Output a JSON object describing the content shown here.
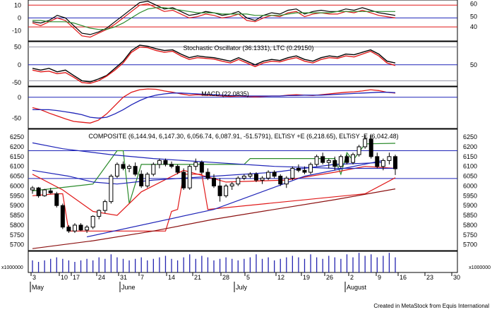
{
  "footer": "Created in MetaStock from Equis International",
  "colors": {
    "bg": "#ffffff",
    "frame": "#000000",
    "blue": "#1f24b8",
    "red": "#e01818",
    "green": "#2a8a2a",
    "darkred": "#8b1010",
    "black": "#000000",
    "volume": "#2424b0"
  },
  "x_axis": {
    "day_labels": [
      "3",
      "10",
      "17",
      "24",
      "31",
      "7",
      "14",
      "21",
      "28",
      "5",
      "12",
      "19",
      "26",
      "2",
      "9",
      "16",
      "23",
      "30"
    ],
    "month_labels": [
      "May",
      "June",
      "July",
      "August"
    ]
  },
  "chart_data": [
    {
      "type": "line",
      "id": "oscillator-top",
      "yticks_left": [
        "10",
        "0",
        "-10"
      ],
      "yticks_right": [
        "60",
        "50",
        "40"
      ],
      "series": [
        {
          "color": "#000000",
          "values": [
            -3,
            -4,
            -2,
            2,
            0,
            -6,
            -12,
            -13,
            -11,
            -8,
            -3,
            2,
            7,
            12,
            13,
            10,
            7,
            8,
            5,
            2,
            3,
            5,
            4,
            2,
            3,
            5,
            0,
            -2,
            2,
            4,
            3,
            6,
            7,
            3,
            5,
            6,
            5,
            5,
            7,
            6,
            8,
            6,
            4,
            3,
            2
          ]
        },
        {
          "color": "#e01818",
          "values": [
            -4,
            -6,
            -3,
            0,
            -2,
            -8,
            -14,
            -15,
            -12,
            -9,
            -5,
            0,
            5,
            10,
            11,
            8,
            5,
            6,
            3,
            0,
            1,
            3,
            2,
            0,
            1,
            3,
            -2,
            -3,
            0,
            2,
            1,
            4,
            5,
            1,
            3,
            4,
            3,
            3,
            5,
            4,
            6,
            4,
            2,
            1,
            0
          ]
        },
        {
          "color": "#2a8a2a",
          "values": [
            -2,
            -2,
            -3,
            -3,
            -3,
            -4,
            -6,
            -8,
            -9,
            -9,
            -7,
            -4,
            0,
            4,
            7,
            8,
            8,
            7,
            6,
            5,
            4,
            4,
            4,
            3,
            3,
            3,
            3,
            2,
            2,
            2,
            2,
            3,
            4,
            4,
            4,
            4,
            4,
            5,
            5,
            5,
            5,
            5,
            5,
            5,
            5
          ]
        }
      ]
    },
    {
      "type": "line",
      "id": "stochastic",
      "title": "Stochastic Oscillator (36.1331), LTC (0.29150)",
      "yticks_left": [
        "50",
        "0",
        "-50"
      ],
      "yticks_right": [
        "50"
      ],
      "series": [
        {
          "color": "#000000",
          "values": [
            -10,
            -15,
            -10,
            -20,
            -15,
            -30,
            -45,
            -48,
            -40,
            -30,
            -10,
            10,
            40,
            55,
            52,
            45,
            40,
            42,
            30,
            20,
            25,
            22,
            20,
            15,
            10,
            20,
            10,
            0,
            10,
            15,
            12,
            20,
            25,
            15,
            10,
            20,
            25,
            22,
            30,
            28,
            35,
            42,
            30,
            10,
            5
          ]
        },
        {
          "color": "#e01818",
          "values": [
            -15,
            -20,
            -18,
            -25,
            -22,
            -35,
            -50,
            -52,
            -45,
            -32,
            -15,
            5,
            35,
            50,
            48,
            40,
            35,
            38,
            25,
            15,
            20,
            18,
            16,
            10,
            5,
            15,
            5,
            -5,
            5,
            10,
            8,
            15,
            20,
            10,
            5,
            15,
            20,
            18,
            25,
            22,
            30,
            38,
            25,
            5,
            -2
          ]
        }
      ]
    },
    {
      "type": "line",
      "id": "macd",
      "title": "MACD (22.0835)",
      "yticks_left": [
        "0",
        "-50"
      ],
      "series": [
        {
          "color": "#e01818",
          "values": [
            -25,
            -30,
            -38,
            -45,
            -52,
            -58,
            -60,
            -62,
            -55,
            -40,
            -20,
            0,
            12,
            18,
            20,
            19,
            15,
            12,
            8,
            5,
            6,
            5,
            4,
            3,
            2,
            3,
            2,
            1,
            2,
            3,
            3,
            5,
            6,
            5,
            4,
            6,
            8,
            10,
            12,
            13,
            15,
            18,
            16,
            12,
            10
          ]
        },
        {
          "color": "#1f24b8",
          "values": [
            -30,
            -30,
            -30,
            -32,
            -35,
            -38,
            -42,
            -48,
            -50,
            -48,
            -40,
            -30,
            -18,
            -8,
            0,
            5,
            8,
            10,
            10,
            9,
            8,
            7,
            6,
            5,
            4,
            4,
            3,
            3,
            3,
            3,
            3,
            4,
            4,
            5,
            5,
            5,
            6,
            7,
            8,
            9,
            10,
            11,
            12,
            12,
            11
          ]
        }
      ]
    },
    {
      "type": "candlestick",
      "id": "composite",
      "title": "COMPOSITE (6,144.94, 6,147.30, 6,056.74, 6,087.91, -51.5791), ELTiSY +E (6,218.65), ELTiSY -E (6,042.48)",
      "yticks": [
        "6250",
        "6200",
        "6150",
        "6100",
        "6050",
        "6000",
        "5950",
        "5900",
        "5850",
        "5800",
        "5750",
        "5700"
      ],
      "ylim": [
        5670,
        6290
      ],
      "hlines": [
        6180,
        6038
      ],
      "candles": [
        [
          5980,
          6000,
          5960,
          5990
        ],
        [
          5990,
          5995,
          5940,
          5950
        ],
        [
          5950,
          5985,
          5945,
          5980
        ],
        [
          5975,
          5990,
          5960,
          5965
        ],
        [
          5960,
          5970,
          5890,
          5900
        ],
        [
          5900,
          5910,
          5780,
          5790
        ],
        [
          5790,
          5800,
          5760,
          5770
        ],
        [
          5770,
          5810,
          5760,
          5800
        ],
        [
          5800,
          5810,
          5770,
          5775
        ],
        [
          5775,
          5800,
          5760,
          5790
        ],
        [
          5790,
          5850,
          5780,
          5845
        ],
        [
          5845,
          5880,
          5830,
          5875
        ],
        [
          5875,
          5930,
          5860,
          5920
        ],
        [
          5920,
          6060,
          5910,
          6050
        ],
        [
          6050,
          6120,
          6040,
          6110
        ],
        [
          6110,
          6125,
          6080,
          6090
        ],
        [
          6090,
          6110,
          6070,
          6100
        ],
        [
          6100,
          6120,
          6050,
          6060
        ],
        [
          6060,
          6080,
          5990,
          6000
        ],
        [
          6000,
          6070,
          5990,
          6060
        ],
        [
          6060,
          6120,
          6050,
          6110
        ],
        [
          6110,
          6140,
          6090,
          6130
        ],
        [
          6130,
          6140,
          6100,
          6110
        ],
        [
          6110,
          6125,
          6090,
          6100
        ],
        [
          6100,
          6110,
          6060,
          6070
        ],
        [
          6070,
          6090,
          5980,
          5990
        ],
        [
          5990,
          6110,
          5980,
          6100
        ],
        [
          6100,
          6140,
          6080,
          6120
        ],
        [
          6120,
          6130,
          6060,
          6070
        ],
        [
          6070,
          6090,
          6030,
          6040
        ],
        [
          6040,
          6060,
          5990,
          6000
        ],
        [
          6000,
          6040,
          5920,
          5950
        ],
        [
          5950,
          6010,
          5940,
          6000
        ],
        [
          6000,
          6020,
          5980,
          6010
        ],
        [
          6010,
          6050,
          6000,
          6040
        ],
        [
          6040,
          6060,
          6030,
          6050
        ],
        [
          6050,
          6070,
          6040,
          6060
        ],
        [
          6060,
          6070,
          6020,
          6030
        ],
        [
          6030,
          6050,
          6010,
          6040
        ],
        [
          6040,
          6080,
          6030,
          6070
        ],
        [
          6070,
          6080,
          6040,
          6050
        ],
        [
          6050,
          6060,
          6000,
          6010
        ],
        [
          6010,
          6050,
          5990,
          6040
        ],
        [
          6040,
          6100,
          6030,
          6090
        ],
        [
          6090,
          6110,
          6070,
          6080
        ],
        [
          6080,
          6100,
          6060,
          6070
        ],
        [
          6070,
          6120,
          6060,
          6110
        ],
        [
          6110,
          6160,
          6100,
          6150
        ],
        [
          6150,
          6170,
          6110,
          6120
        ],
        [
          6120,
          6140,
          6090,
          6130
        ],
        [
          6130,
          6150,
          6080,
          6100
        ],
        [
          6100,
          6160,
          6090,
          6150
        ],
        [
          6150,
          6160,
          6110,
          6120
        ],
        [
          6120,
          6170,
          6110,
          6160
        ],
        [
          6160,
          6210,
          6150,
          6200
        ],
        [
          6200,
          6260,
          6190,
          6240
        ],
        [
          6240,
          6260,
          6140,
          6150
        ],
        [
          6150,
          6170,
          6090,
          6100
        ],
        [
          6100,
          6140,
          6080,
          6130
        ],
        [
          6130,
          6170,
          6110,
          6150
        ],
        [
          6150,
          6160,
          6056,
          6088
        ]
      ],
      "lines": [
        {
          "color": "#2a8a2a",
          "points": [
            [
              0,
              5975
            ],
            [
              10,
              6010
            ],
            [
              14,
              6180
            ],
            [
              15,
              6180
            ],
            [
              16,
              5910
            ],
            [
              18,
              6110
            ],
            [
              35,
              6110
            ],
            [
              36,
              6140
            ],
            [
              50,
              6140
            ],
            [
              51,
              6060
            ],
            [
              52,
              6170
            ],
            [
              53,
              6130
            ],
            [
              55,
              6215
            ],
            [
              60,
              6218
            ]
          ]
        },
        {
          "color": "#e01818",
          "points": [
            [
              0,
              5950
            ],
            [
              4,
              5960
            ],
            [
              5,
              5960
            ],
            [
              6,
              5770
            ],
            [
              22,
              5770
            ],
            [
              23,
              5870
            ],
            [
              24,
              5880
            ],
            [
              25,
              6060
            ],
            [
              28,
              6060
            ],
            [
              29,
              5880
            ],
            [
              55,
              5960
            ],
            [
              60,
              6042
            ]
          ]
        },
        {
          "color": "#e01818",
          "points": [
            [
              0,
              6060
            ],
            [
              5,
              5980
            ],
            [
              10,
              5870
            ],
            [
              14,
              5850
            ],
            [
              18,
              5970
            ],
            [
              25,
              6080
            ],
            [
              32,
              6020
            ],
            [
              42,
              6030
            ],
            [
              50,
              6070
            ],
            [
              55,
              6100
            ],
            [
              60,
              6090
            ]
          ]
        },
        {
          "color": "#1f24b8",
          "points": [
            [
              0,
              6220
            ],
            [
              5,
              6190
            ],
            [
              13,
              6160
            ],
            [
              20,
              6140
            ],
            [
              30,
              6120
            ],
            [
              40,
              6100
            ],
            [
              50,
              6090
            ],
            [
              60,
              6090
            ]
          ]
        },
        {
          "color": "#1f24b8",
          "points": [
            [
              0,
              6080
            ],
            [
              6,
              6050
            ],
            [
              10,
              6020
            ],
            [
              14,
              6010
            ],
            [
              20,
              6030
            ],
            [
              30,
              6050
            ],
            [
              40,
              6070
            ],
            [
              50,
              6110
            ],
            [
              58,
              6120
            ]
          ]
        },
        {
          "color": "#1f24b8",
          "points": [
            [
              9,
              5740
            ],
            [
              30,
              5880
            ],
            [
              45,
              6050
            ],
            [
              58,
              6130
            ]
          ]
        },
        {
          "color": "#8b1010",
          "points": [
            [
              0,
              5680
            ],
            [
              10,
              5720
            ],
            [
              20,
              5770
            ],
            [
              30,
              5830
            ],
            [
              40,
              5880
            ],
            [
              50,
              5930
            ],
            [
              60,
              5985
            ]
          ]
        }
      ]
    },
    {
      "type": "bar",
      "id": "volume",
      "ylabel_left": "x1000000",
      "ylabel_right": "x1000000",
      "values": [
        8,
        7,
        8,
        9,
        10,
        9,
        8,
        7,
        8,
        9,
        8,
        10,
        9,
        12,
        10,
        9,
        8,
        9,
        10,
        8,
        9,
        10,
        11,
        9,
        8,
        10,
        12,
        9,
        11,
        10,
        8,
        9,
        10,
        9,
        8,
        9,
        10,
        12,
        9,
        10,
        8,
        9,
        10,
        11,
        10,
        9,
        12,
        10,
        9,
        11,
        10,
        9,
        12,
        10,
        13,
        11,
        12,
        10,
        11,
        13,
        10
      ]
    }
  ]
}
